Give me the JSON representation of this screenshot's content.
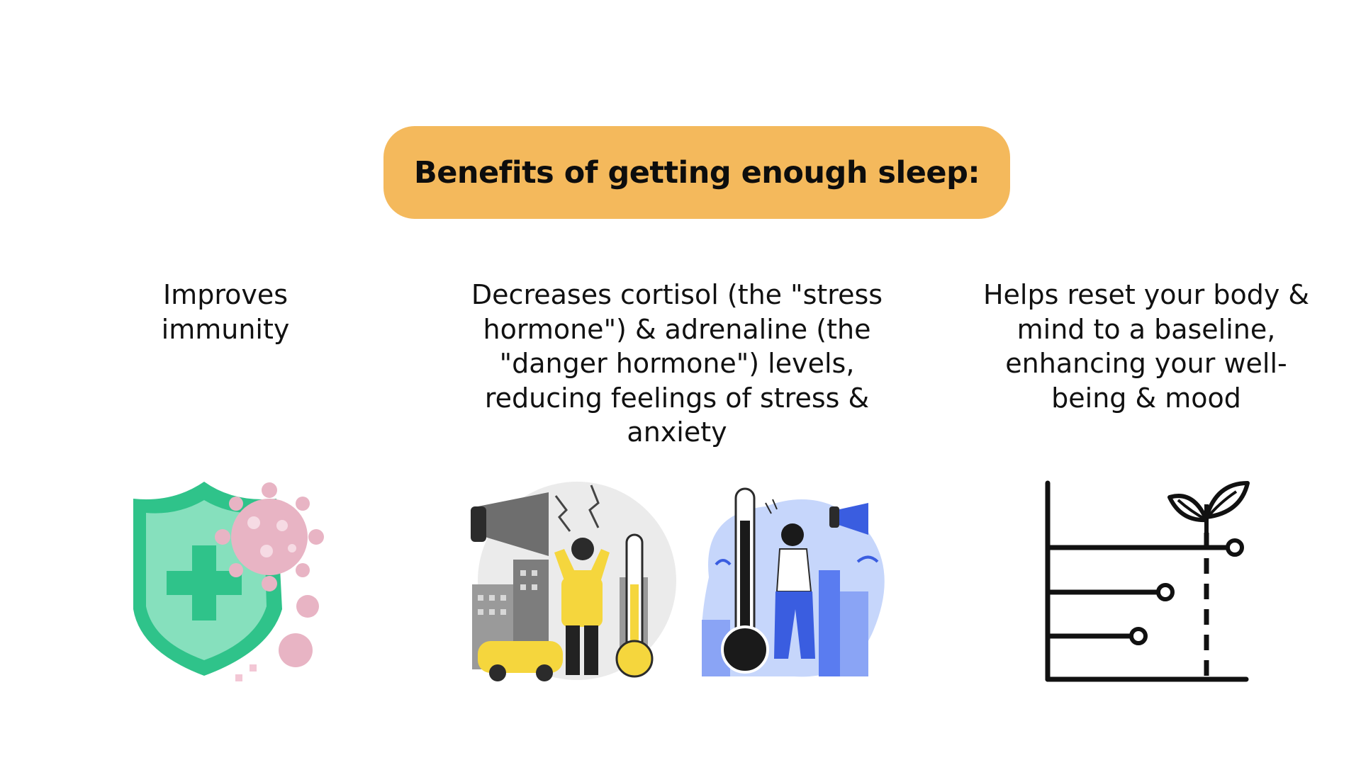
{
  "header": {
    "title": "Benefits of getting enough sleep:",
    "accent_color": "#f4b95c"
  },
  "benefits": [
    {
      "text": "Improves\nimmunity",
      "icon": "shield-virus-icon"
    },
    {
      "text": "Decreases cortisol (the \"stress\nhormone\") & adrenaline (the\n\"danger hormone\") levels,\nreducing feelings of stress &\nanxiety",
      "icons": [
        "stressed-man-city-illustration",
        "stressed-woman-thermometer-illustration"
      ]
    },
    {
      "text": "Helps reset your body &\nmind to a baseline,\nenhancing your well-\nbeing & mood",
      "icon": "growth-chart-plant-icon"
    }
  ]
}
